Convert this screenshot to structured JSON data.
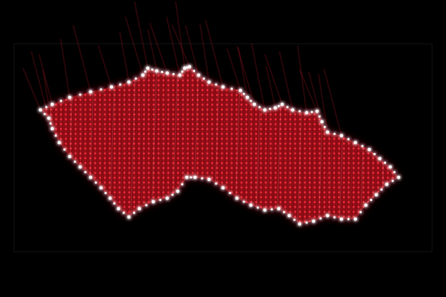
{
  "image": {
    "subject": "Czech Republic",
    "colors": {
      "background": "#000000",
      "fill": "#b0101a",
      "streak": "#e02030",
      "border_lights": "#ffffff",
      "frame": "#1a1a1a"
    }
  }
}
